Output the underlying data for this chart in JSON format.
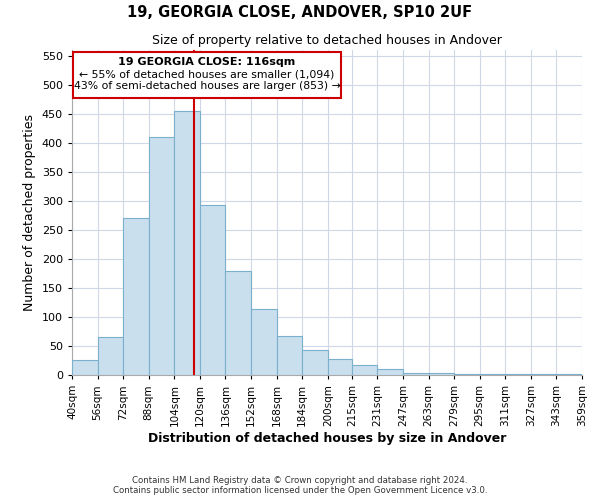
{
  "title": "19, GEORGIA CLOSE, ANDOVER, SP10 2UF",
  "subtitle": "Size of property relative to detached houses in Andover",
  "xlabel": "Distribution of detached houses by size in Andover",
  "ylabel": "Number of detached properties",
  "bin_labels": [
    "40sqm",
    "56sqm",
    "72sqm",
    "88sqm",
    "104sqm",
    "120sqm",
    "136sqm",
    "152sqm",
    "168sqm",
    "184sqm",
    "200sqm",
    "215sqm",
    "231sqm",
    "247sqm",
    "263sqm",
    "279sqm",
    "295sqm",
    "311sqm",
    "327sqm",
    "343sqm",
    "359sqm"
  ],
  "bin_edges": [
    40,
    56,
    72,
    88,
    104,
    120,
    136,
    152,
    168,
    184,
    200,
    215,
    231,
    247,
    263,
    279,
    295,
    311,
    327,
    343,
    359
  ],
  "bar_heights": [
    25,
    65,
    270,
    410,
    455,
    293,
    180,
    113,
    67,
    43,
    27,
    17,
    11,
    3,
    3,
    1,
    2,
    1,
    1,
    1
  ],
  "bar_color": "#c9dfee",
  "bar_edge_color": "#7ab0cc",
  "vline_x": 116,
  "vline_color": "#cc0000",
  "ylim": [
    0,
    560
  ],
  "yticks": [
    0,
    50,
    100,
    150,
    200,
    250,
    300,
    350,
    400,
    450,
    500,
    550
  ],
  "annotation_box_title": "19 GEORGIA CLOSE: 116sqm",
  "annotation_line1": "← 55% of detached houses are smaller (1,094)",
  "annotation_line2": "43% of semi-detached houses are larger (853) →",
  "annotation_box_color": "#ffffff",
  "annotation_box_edge": "#cc0000",
  "footer_line1": "Contains HM Land Registry data © Crown copyright and database right 2024.",
  "footer_line2": "Contains public sector information licensed under the Open Government Licence v3.0.",
  "background_color": "#ffffff",
  "grid_color": "#d0d8e8"
}
